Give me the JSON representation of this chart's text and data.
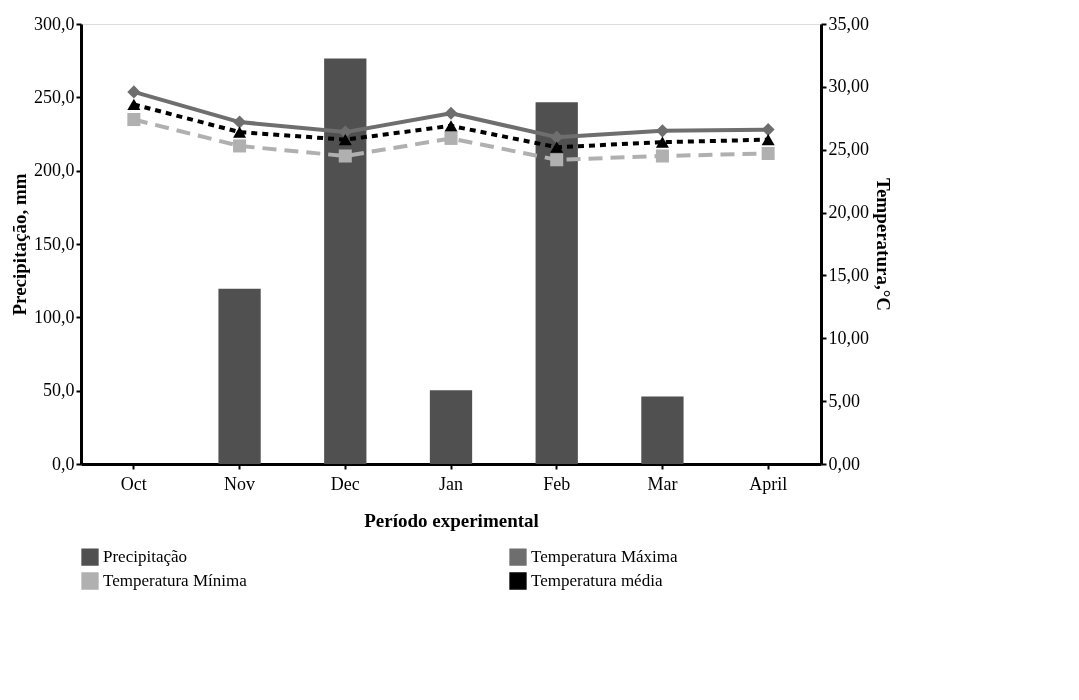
{
  "chart_data": {
    "type": "bar",
    "xlabel": "Período experimental",
    "ylabel": "Precipitação, mm",
    "y2label": "Temperatura,°C",
    "categories": [
      "Oct",
      "Nov",
      "Dec",
      "Jan",
      "Feb",
      "Mar",
      "April"
    ],
    "series": [
      {
        "name": "Precipitação",
        "color": "#505050",
        "values": [
          null,
          119.5,
          276.5,
          50.3,
          246.7,
          46,
          null
        ]
      },
      {
        "name": "Temperatura Máxima",
        "type": "line",
        "axis": "y2",
        "color": "#6e6e6e",
        "marker": "diamond",
        "line_style": "solid",
        "values": [
          29.6,
          27.2,
          26.4,
          27.9,
          26.0,
          26.5,
          26.6
        ]
      },
      {
        "name": "Temperatura Mínima",
        "type": "line",
        "axis": "y2",
        "color": "#b0b0b0",
        "marker": "square",
        "line_style": "dashed",
        "values": [
          27.4,
          25.3,
          24.5,
          25.9,
          24.2,
          24.5,
          24.7
        ]
      },
      {
        "name": "Temperatura média",
        "type": "line",
        "axis": "y2",
        "color": "#000000",
        "marker": "triangle",
        "line_style": "dotted",
        "values": [
          28.6,
          26.4,
          25.8,
          26.9,
          25.2,
          25.6,
          25.8
        ]
      }
    ],
    "ylim": [
      0,
      300
    ],
    "yticks": [
      {
        "value": 0,
        "label": "0,0"
      },
      {
        "value": 50,
        "label": "50,0"
      },
      {
        "value": 100,
        "label": "100,0"
      },
      {
        "value": 150,
        "label": "150,0"
      },
      {
        "value": 200,
        "label": "200,0"
      },
      {
        "value": 250,
        "label": "250,0"
      },
      {
        "value": 300,
        "label": "300,0"
      }
    ],
    "y2lim": [
      0,
      35
    ],
    "y2ticks": [
      {
        "value": 0,
        "label": "0,00"
      },
      {
        "value": 5,
        "label": "5,00"
      },
      {
        "value": 10,
        "label": "10,00"
      },
      {
        "value": 15,
        "label": "15,00"
      },
      {
        "value": 20,
        "label": "20,00"
      },
      {
        "value": 25,
        "label": "25,00"
      },
      {
        "value": 30,
        "label": "30,00"
      },
      {
        "value": 35,
        "label": "35,00"
      }
    ],
    "grid": false,
    "legend": "bottom"
  }
}
